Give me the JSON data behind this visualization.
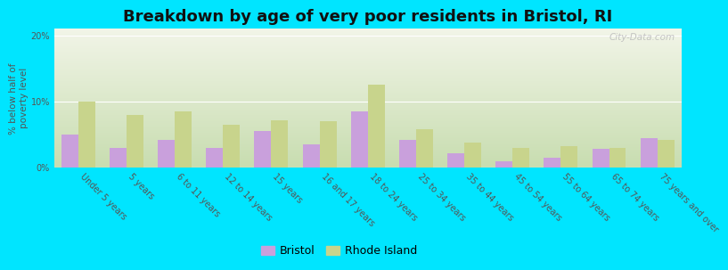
{
  "title": "Breakdown by age of very poor residents in Bristol, RI",
  "ylabel": "% below half of\npoverty level",
  "categories": [
    "Under 5 years",
    "5 years",
    "6 to 11 years",
    "12 to 14 years",
    "15 years",
    "16 and 17 years",
    "18 to 24 years",
    "25 to 34 years",
    "35 to 44 years",
    "45 to 54 years",
    "55 to 64 years",
    "65 to 74 years",
    "75 years and over"
  ],
  "bristol": [
    5.0,
    3.0,
    4.2,
    3.0,
    5.5,
    3.5,
    8.5,
    4.2,
    2.2,
    1.0,
    1.5,
    2.8,
    4.5
  ],
  "rhode_island": [
    10.0,
    8.0,
    8.5,
    6.5,
    7.2,
    7.0,
    12.5,
    5.8,
    3.8,
    3.0,
    3.2,
    3.0,
    4.2
  ],
  "bristol_color": "#c9a0dc",
  "rhode_island_color": "#c8d48c",
  "background_outer": "#00e5ff",
  "background_inner_top": "#f2f5e8",
  "background_inner_bottom": "#c8ddb0",
  "ylim": [
    0,
    21
  ],
  "yticks": [
    0,
    10,
    20
  ],
  "ytick_labels": [
    "0%",
    "10%",
    "20%"
  ],
  "title_fontsize": 13,
  "axis_label_fontsize": 7.5,
  "tick_label_fontsize": 7,
  "legend_fontsize": 9,
  "watermark": "City-Data.com"
}
